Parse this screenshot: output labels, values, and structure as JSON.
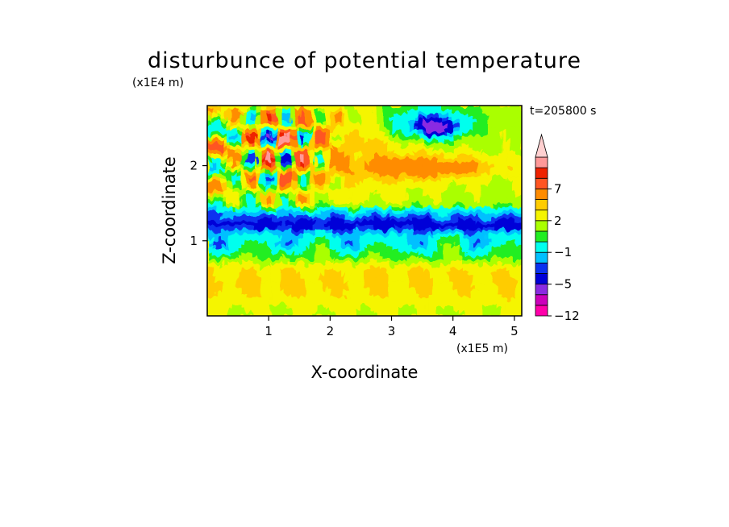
{
  "chart_data": {
    "type": "heatmap",
    "title": "disturbunce of potential temperature",
    "time_label": "t=205800 s",
    "x_axis": {
      "label": "X-coordinate",
      "unit_label": "(x1E5 m)",
      "scale": 100000,
      "range": [
        0,
        5.12
      ],
      "ticks": [
        1,
        2,
        3,
        4,
        5
      ],
      "tick_labels": [
        "1",
        "2",
        "3",
        "4",
        "5"
      ]
    },
    "y_axis": {
      "label": "Z-coordinate",
      "unit_label": "(x1E4 m)",
      "scale": 10000,
      "range": [
        0,
        2.8
      ],
      "ticks": [
        1,
        2
      ],
      "tick_labels": [
        "1",
        "2"
      ]
    },
    "colorbar": {
      "levels": [
        -12,
        -9,
        -7,
        -5,
        -4,
        -3,
        -1,
        0,
        1,
        2,
        3,
        5,
        7,
        9,
        11
      ],
      "colors": [
        "#ff00aa",
        "#cc00bb",
        "#8a2be2",
        "#0000d8",
        "#0a32f0",
        "#00c0ff",
        "#00ffee",
        "#22ee22",
        "#aaff00",
        "#f5f500",
        "#ffcc00",
        "#ff8c00",
        "#ff5522",
        "#ee2200",
        "#ff9999",
        "#ffd0d0"
      ],
      "labeled_levels": [
        -12,
        -5,
        -1,
        2,
        7
      ],
      "tick_labels": [
        "−12",
        "−5",
        "−1",
        "2",
        "7"
      ],
      "extend": "max"
    },
    "features": [
      {
        "desc": "cold band",
        "x": [
          0,
          5.12
        ],
        "z": [
          1.15,
          1.32
        ],
        "value": -5
      },
      {
        "desc": "cold band",
        "x": [
          0,
          5.12
        ],
        "z": [
          0.88,
          1.05
        ],
        "value": -5
      },
      {
        "desc": "cold core",
        "x": [
          3.55,
          3.85
        ],
        "z": [
          2.45,
          2.58
        ],
        "value": -7
      },
      {
        "desc": "warm layer",
        "x": [
          2.7,
          4.6
        ],
        "z": [
          1.95,
          2.05
        ],
        "value": 5
      },
      {
        "desc": "wave packet",
        "x": [
          0.8,
          1.6
        ],
        "z": [
          1.8,
          2.7
        ],
        "value": -9
      },
      {
        "desc": "wave packet",
        "x": [
          0.8,
          1.6
        ],
        "z": [
          1.8,
          2.7
        ],
        "value": 9
      }
    ]
  }
}
